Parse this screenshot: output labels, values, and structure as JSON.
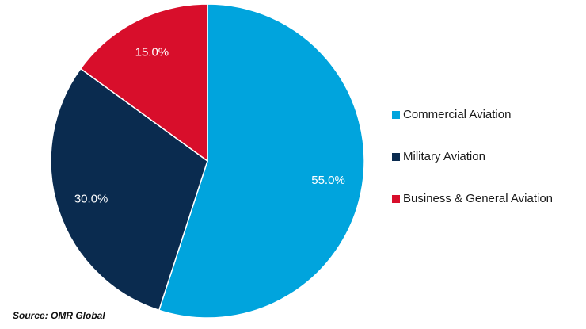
{
  "chart_data": {
    "type": "pie",
    "title": "",
    "categories": [
      "Commercial Aviation",
      "Military Aviation",
      "Business & General Aviation"
    ],
    "values": [
      55.0,
      30.0,
      15.0
    ],
    "value_labels": [
      "55.0%",
      "30.0%",
      "15.0%"
    ],
    "colors": [
      "#00a4dd",
      "#0a2b4f",
      "#d80e2b"
    ],
    "start": "12 o'clock",
    "direction": "clockwise",
    "legend_position": "right"
  },
  "source": "Source: OMR Global"
}
